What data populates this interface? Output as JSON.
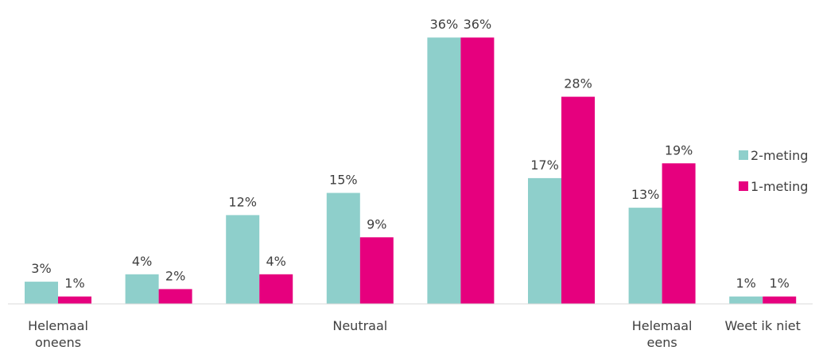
{
  "chart_data": {
    "type": "bar",
    "categories": [
      [
        "Helemaal",
        "oneens"
      ],
      [],
      [],
      [
        "Neutraal"
      ],
      [],
      [],
      [
        "Helemaal",
        "eens"
      ],
      [
        "Weet ik niet"
      ]
    ],
    "series": [
      {
        "name": "2-meting",
        "color": "#8ECFCB",
        "values": [
          3,
          4,
          12,
          15,
          36,
          17,
          13,
          1
        ],
        "labels": [
          "3%",
          "4%",
          "12%",
          "15%",
          "36%",
          "17%",
          "13%",
          "1%"
        ]
      },
      {
        "name": "1-meting",
        "color": "#E6007E",
        "values": [
          1,
          2,
          4,
          9,
          36,
          28,
          19,
          1
        ],
        "labels": [
          "1%",
          "2%",
          "4%",
          "9%",
          "36%",
          "28%",
          "19%",
          "1%"
        ]
      }
    ],
    "ylim": [
      0,
      40
    ],
    "grid": false,
    "legend": "right",
    "axis_color": "#D9D9D9"
  }
}
